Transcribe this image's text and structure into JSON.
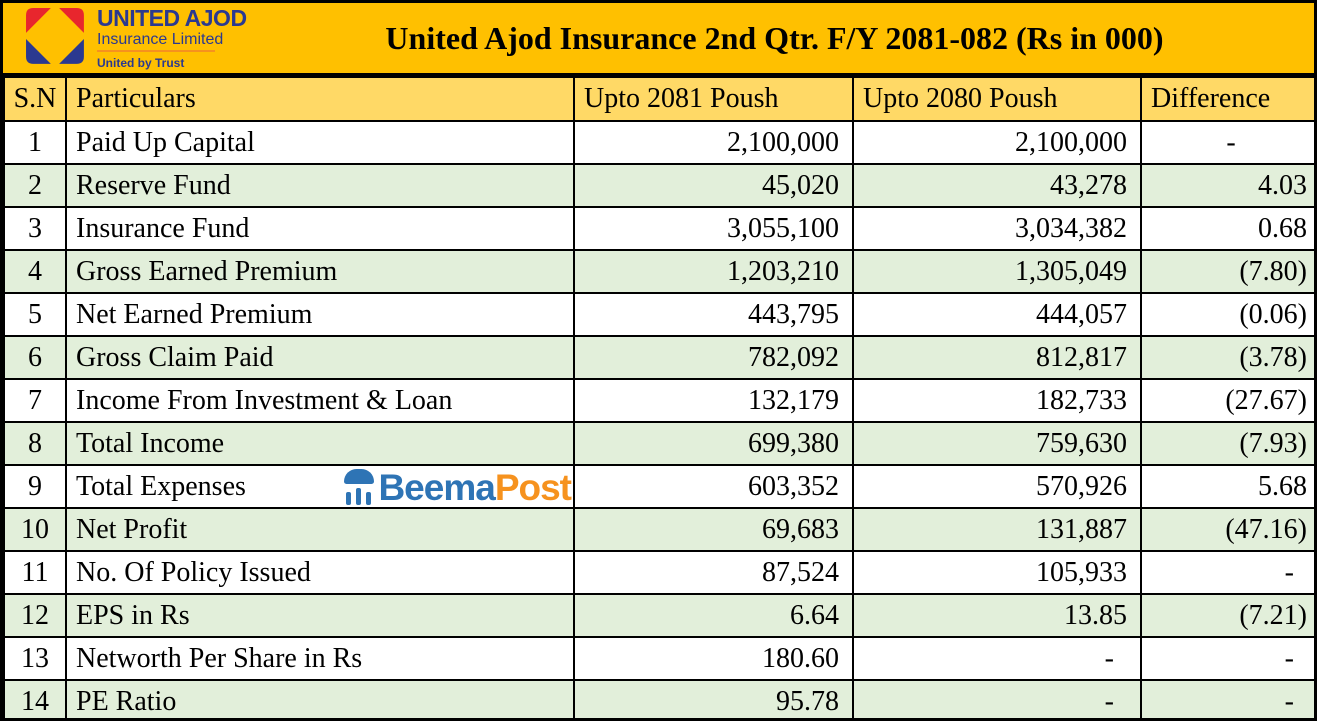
{
  "logo": {
    "name": "UNITED AJOD",
    "subtitle": "Insurance Limited",
    "tagline": "United by Trust"
  },
  "title": "United Ajod Insurance 2nd Qtr. F/Y 2081-082  (Rs in 000)",
  "watermark": {
    "beema": "Beema",
    "post": "Post",
    "icon": "umbrella-icon"
  },
  "colors": {
    "title_bg": "#FFC000",
    "header_bg": "#FFD966",
    "row_green": "#E2EFDA",
    "navy": "#2B3990",
    "red": "#E8262D",
    "orange": "#F6921E",
    "beema_blue": "#2E74B5",
    "border": "#000000"
  },
  "table": {
    "headers": [
      "S.N",
      "Particulars",
      "Upto 2081 Poush",
      "Upto 2080 Poush",
      "Difference"
    ],
    "rows": [
      {
        "sn": "1",
        "particulars": "Paid Up Capital",
        "v2081": "2,100,000",
        "v2080": "2,100,000",
        "diff": "-",
        "diff_align": "center"
      },
      {
        "sn": "2",
        "particulars": "Reserve Fund",
        "v2081": "45,020",
        "v2080": "43,278",
        "diff": "4.03"
      },
      {
        "sn": "3",
        "particulars": "Insurance Fund",
        "v2081": "3,055,100",
        "v2080": "3,034,382",
        "diff": "0.68"
      },
      {
        "sn": "4",
        "particulars": "Gross Earned Premium",
        "v2081": "1,203,210",
        "v2080": "1,305,049",
        "diff": "(7.80)"
      },
      {
        "sn": "5",
        "particulars": "Net Earned Premium",
        "v2081": "443,795",
        "v2080": "444,057",
        "diff": "(0.06)"
      },
      {
        "sn": "6",
        "particulars": "Gross Claim Paid",
        "v2081": "782,092",
        "v2080": "812,817",
        "diff": "(3.78)"
      },
      {
        "sn": "7",
        "particulars": "Income From Investment & Loan",
        "v2081": "132,179",
        "v2080": "182,733",
        "diff": "(27.67)"
      },
      {
        "sn": "8",
        "particulars": "Total Income",
        "v2081": "699,380",
        "v2080": "759,630",
        "diff": "(7.93)"
      },
      {
        "sn": "9",
        "particulars": "Total Expenses",
        "v2081": "603,352",
        "v2080": "570,926",
        "diff": "5.68",
        "watermark": true
      },
      {
        "sn": "10",
        "particulars": "Net Profit",
        "v2081": "69,683",
        "v2080": "131,887",
        "diff": "(47.16)"
      },
      {
        "sn": "11",
        "particulars": "No. Of Policy Issued",
        "v2081": "87,524",
        "v2080": "105,933",
        "diff": "-"
      },
      {
        "sn": "12",
        "particulars": "EPS in Rs",
        "v2081": "6.64",
        "v2080": "13.85",
        "diff": "(7.21)"
      },
      {
        "sn": "13",
        "particulars": "Networth Per Share in Rs",
        "v2081": "180.60",
        "v2080": "-",
        "diff": "-"
      },
      {
        "sn": "14",
        "particulars": "PE Ratio",
        "v2081": "95.78",
        "v2080": "-",
        "diff": "-"
      }
    ]
  },
  "chart_data": {
    "type": "table",
    "title": "United Ajod Insurance 2nd Qtr. F/Y 2081-082  (Rs in 000)",
    "columns": [
      "S.N",
      "Particulars",
      "Upto 2081 Poush",
      "Upto 2080 Poush",
      "Difference"
    ],
    "rows": [
      [
        1,
        "Paid Up Capital",
        2100000,
        2100000,
        null
      ],
      [
        2,
        "Reserve Fund",
        45020,
        43278,
        4.03
      ],
      [
        3,
        "Insurance Fund",
        3055100,
        3034382,
        0.68
      ],
      [
        4,
        "Gross Earned Premium",
        1203210,
        1305049,
        -7.8
      ],
      [
        5,
        "Net Earned Premium",
        443795,
        444057,
        -0.06
      ],
      [
        6,
        "Gross Claim Paid",
        782092,
        812817,
        -3.78
      ],
      [
        7,
        "Income From Investment & Loan",
        132179,
        182733,
        -27.67
      ],
      [
        8,
        "Total Income",
        699380,
        759630,
        -7.93
      ],
      [
        9,
        "Total Expenses",
        603352,
        570926,
        5.68
      ],
      [
        10,
        "Net Profit",
        69683,
        131887,
        -47.16
      ],
      [
        11,
        "No. Of Policy Issued",
        87524,
        105933,
        null
      ],
      [
        12,
        "EPS in Rs",
        6.64,
        13.85,
        -7.21
      ],
      [
        13,
        "Networth Per Share in Rs",
        180.6,
        null,
        null
      ],
      [
        14,
        "PE Ratio",
        95.78,
        null,
        null
      ]
    ]
  }
}
